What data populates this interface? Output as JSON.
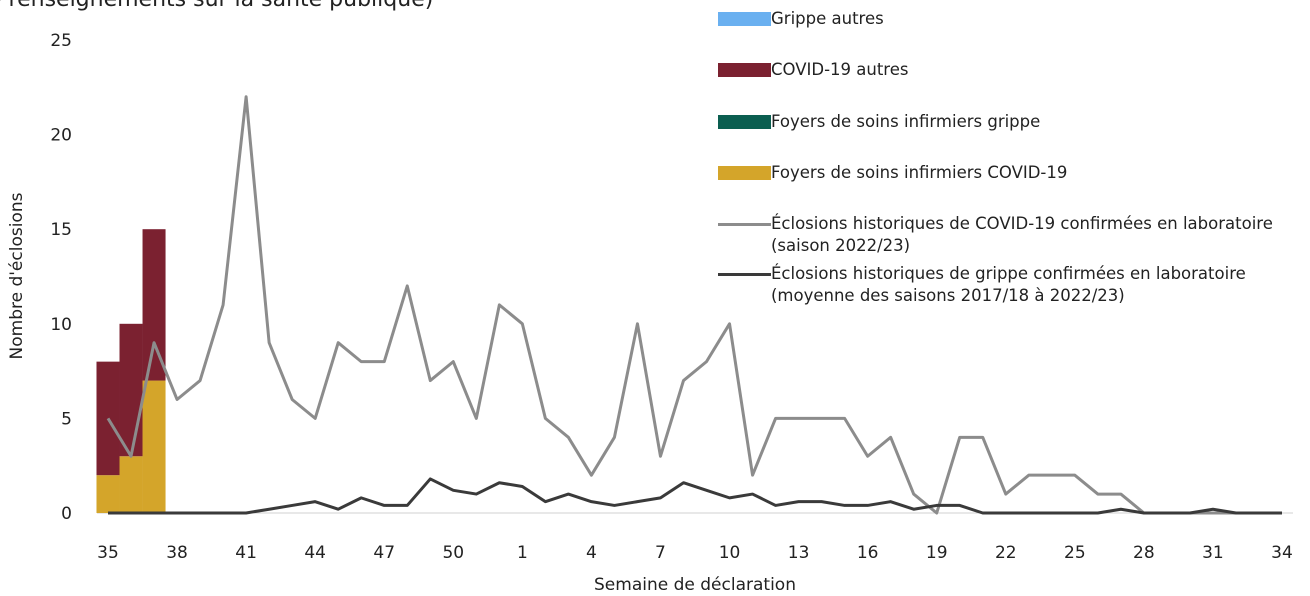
{
  "chart_data": {
    "type": "bar",
    "title": "e renseignements sur la santé publique)",
    "y_label": "Nombre d'éclosions",
    "x_label": "Semaine de déclaration",
    "categories": [
      "35",
      null,
      null,
      "38",
      null,
      null,
      "41",
      null,
      null,
      "44",
      null,
      null,
      "47",
      null,
      null,
      "50",
      null,
      null,
      "1",
      null,
      null,
      "4",
      null,
      null,
      "7",
      null,
      null,
      "10",
      null,
      null,
      "13",
      null,
      null,
      "16",
      null,
      null,
      "19",
      null,
      null,
      "22",
      null,
      null,
      "25",
      null,
      null,
      "28",
      null,
      null,
      "31",
      null,
      null,
      "34"
    ],
    "ylim": [
      0,
      25
    ],
    "yticks": [
      0,
      5,
      10,
      15,
      20,
      25
    ],
    "series": [
      {
        "name": "Grippe autres",
        "type": "bar",
        "color": "#6ab0f0",
        "values": [
          0,
          0,
          0,
          null,
          null,
          null,
          null,
          null,
          null,
          null,
          null,
          null,
          null,
          null,
          null,
          null,
          null,
          null,
          null,
          null,
          null,
          null,
          null,
          null,
          null,
          null,
          null,
          null,
          null,
          null,
          null,
          null,
          null,
          null,
          null,
          null,
          null,
          null,
          null,
          null,
          null,
          null,
          null,
          null,
          null,
          null,
          null,
          null,
          null,
          null,
          null,
          null
        ]
      },
      {
        "name": "COVID-19 autres",
        "type": "bar",
        "color": "#7b2130",
        "values": [
          6,
          7,
          8,
          null,
          null,
          null,
          null,
          null,
          null,
          null,
          null,
          null,
          null,
          null,
          null,
          null,
          null,
          null,
          null,
          null,
          null,
          null,
          null,
          null,
          null,
          null,
          null,
          null,
          null,
          null,
          null,
          null,
          null,
          null,
          null,
          null,
          null,
          null,
          null,
          null,
          null,
          null,
          null,
          null,
          null,
          null,
          null,
          null,
          null,
          null,
          null,
          null
        ]
      },
      {
        "name": "Foyers de soins infirmiers grippe",
        "type": "bar",
        "color": "#0b5e50",
        "values": [
          0,
          0,
          0,
          null,
          null,
          null,
          null,
          null,
          null,
          null,
          null,
          null,
          null,
          null,
          null,
          null,
          null,
          null,
          null,
          null,
          null,
          null,
          null,
          null,
          null,
          null,
          null,
          null,
          null,
          null,
          null,
          null,
          null,
          null,
          null,
          null,
          null,
          null,
          null,
          null,
          null,
          null,
          null,
          null,
          null,
          null,
          null,
          null,
          null,
          null,
          null,
          null
        ]
      },
      {
        "name": "Foyers de soins infirmiers COVID-19",
        "type": "bar",
        "color": "#d4a52a",
        "values": [
          2,
          3,
          7,
          null,
          null,
          null,
          null,
          null,
          null,
          null,
          null,
          null,
          null,
          null,
          null,
          null,
          null,
          null,
          null,
          null,
          null,
          null,
          null,
          null,
          null,
          null,
          null,
          null,
          null,
          null,
          null,
          null,
          null,
          null,
          null,
          null,
          null,
          null,
          null,
          null,
          null,
          null,
          null,
          null,
          null,
          null,
          null,
          null,
          null,
          null,
          null,
          null
        ]
      },
      {
        "name": "Éclosions historiques de COVID-19 confirmées en laboratoire (saison 2022/23)",
        "type": "line",
        "color": "#8c8c8c",
        "values": [
          5,
          3,
          9,
          6,
          7,
          11,
          22,
          9,
          6,
          5,
          9,
          8,
          8,
          12,
          7,
          8,
          5,
          11,
          10,
          5,
          4,
          2,
          4,
          10,
          3,
          7,
          8,
          10,
          2,
          5,
          5,
          5,
          5,
          3,
          4,
          1,
          0,
          4,
          4,
          1,
          2,
          2,
          2,
          1,
          1,
          0,
          0,
          0,
          0,
          0,
          0,
          0
        ]
      },
      {
        "name": "Éclosions historiques de grippe confirmées en laboratoire (moyenne des saisons 2017/18 à 2022/23)",
        "type": "line",
        "color": "#3a3a3a",
        "values": [
          0,
          0,
          0,
          0,
          0,
          0,
          0,
          0.2,
          0.4,
          0.6,
          0.2,
          0.8,
          0.4,
          0.4,
          1.8,
          1.2,
          1.0,
          1.6,
          1.4,
          0.6,
          1.0,
          0.6,
          0.4,
          0.6,
          0.8,
          1.6,
          1.2,
          0.8,
          1.0,
          0.4,
          0.6,
          0.6,
          0.4,
          0.4,
          0.6,
          0.2,
          0.4,
          0.4,
          0,
          0,
          0,
          0,
          0,
          0,
          0.2,
          0,
          0,
          0,
          0.2,
          0,
          0,
          0
        ]
      }
    ]
  }
}
